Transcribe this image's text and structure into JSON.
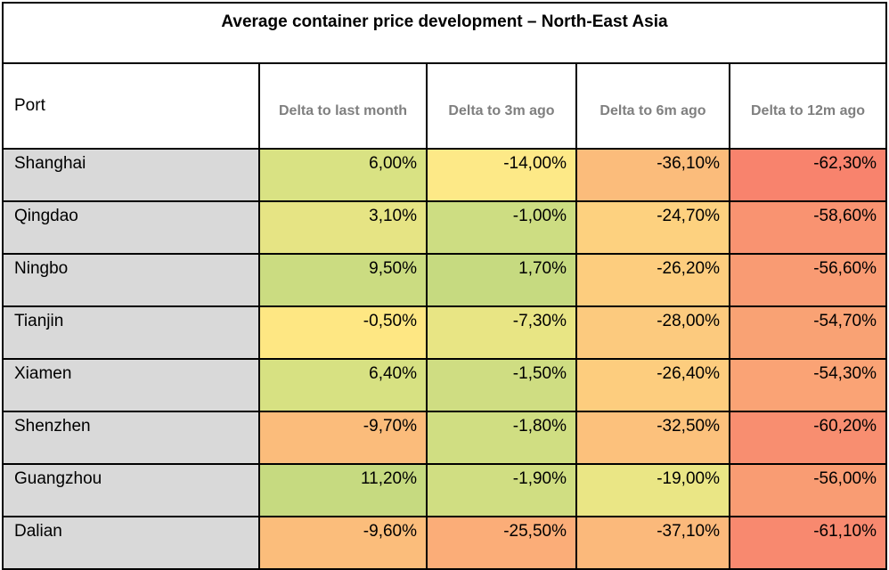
{
  "chart_data": {
    "type": "table",
    "title": "Average container price development – North-East Asia",
    "row_header": "Port",
    "columns": [
      "Delta to last month",
      "Delta to 3m ago",
      "Delta to 6m ago",
      "Delta to 12m ago"
    ],
    "rows": [
      {
        "port": "Shanghai",
        "values": [
          "6,00%",
          "-14,00%",
          "-36,10%",
          "-62,30%"
        ],
        "colors": [
          "#d9e283",
          "#fde987",
          "#fbbc7b",
          "#f8836d"
        ]
      },
      {
        "port": "Qingdao",
        "values": [
          "3,10%",
          "-1,00%",
          "-24,70%",
          "-58,60%"
        ],
        "colors": [
          "#e6e484",
          "#cddd82",
          "#fdd17f",
          "#f99371"
        ]
      },
      {
        "port": "Ningbo",
        "values": [
          "9,50%",
          "1,70%",
          "-26,20%",
          "-56,60%"
        ],
        "colors": [
          "#cbdc81",
          "#c6da80",
          "#fdcd7e",
          "#f99b73"
        ]
      },
      {
        "port": "Tianjin",
        "values": [
          "-0,50%",
          "-7,30%",
          "-28,00%",
          "-54,70%"
        ],
        "colors": [
          "#fee783",
          "#e8e584",
          "#fcca7e",
          "#f9a274"
        ]
      },
      {
        "port": "Xiamen",
        "values": [
          "6,40%",
          "-1,50%",
          "-26,40%",
          "-54,30%"
        ],
        "colors": [
          "#d7e182",
          "#cfdd82",
          "#fdcd7e",
          "#faa375"
        ]
      },
      {
        "port": "Shenzhen",
        "values": [
          "-9,70%",
          "-1,80%",
          "-32,50%",
          "-60,20%"
        ],
        "colors": [
          "#fbbc7b",
          "#d0de82",
          "#fcc17c",
          "#f88e70"
        ]
      },
      {
        "port": "Guangzhou",
        "values": [
          "11,20%",
          "-1,90%",
          "-19,00%",
          "-56,00%"
        ],
        "colors": [
          "#c6da80",
          "#d0de82",
          "#eae685",
          "#f99c73"
        ]
      },
      {
        "port": "Dalian",
        "values": [
          "-9,60%",
          "-25,50%",
          "-37,10%",
          "-61,10%"
        ],
        "colors": [
          "#fbbd7b",
          "#fbad78",
          "#fbb97b",
          "#f8896f"
        ]
      }
    ]
  }
}
